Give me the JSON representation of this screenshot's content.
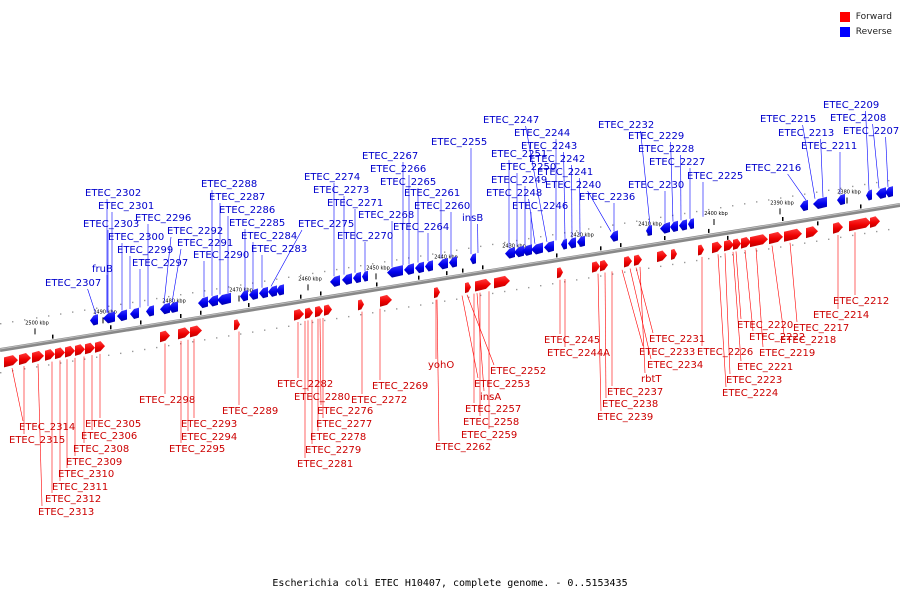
{
  "legend": {
    "forward_label": "Forward",
    "reverse_label": "Reverse",
    "forward_color": "#ff0000",
    "reverse_color": "#0000ff"
  },
  "caption": "Escherichia coli ETEC H10407, complete genome. - 0..5153435",
  "scale_ticks": [
    "2500 kbp",
    "2490 kbp",
    "2480 kbp",
    "2470 kbp",
    "2460 kbp",
    "2450 kbp",
    "2440 kbp",
    "2430 kbp",
    "2420 kbp",
    "2410 kbp",
    "2400 kbp",
    "2390 kbp",
    "2380 kbp"
  ],
  "reverse_genes": [
    "ETEC_2307",
    "fruB",
    "ETEC_2303",
    "ETEC_2302",
    "ETEC_2301",
    "ETEC_2300",
    "ETEC_2299",
    "ETEC_2297",
    "ETEC_2296",
    "ETEC_2292",
    "ETEC_2291",
    "ETEC_2290",
    "ETEC_2288",
    "ETEC_2287",
    "ETEC_2286",
    "ETEC_2285",
    "ETEC_2284",
    "ETEC_2283",
    "ETEC_2275",
    "ETEC_2274",
    "ETEC_2273",
    "ETEC_2271",
    "ETEC_2270",
    "ETEC_2268",
    "ETEC_2267",
    "ETEC_2266",
    "ETEC_2265",
    "ETEC_2264",
    "ETEC_2261",
    "ETEC_2260",
    "ETEC_2255",
    "insB",
    "ETEC_2251",
    "ETEC_2250",
    "ETEC_2249",
    "ETEC_2248",
    "ETEC_2247",
    "ETEC_2246",
    "ETEC_2244",
    "ETEC_2243",
    "ETEC_2242",
    "ETEC_2241",
    "ETEC_2240",
    "ETEC_2236",
    "ETEC_2232",
    "ETEC_2230",
    "ETEC_2229",
    "ETEC_2228",
    "ETEC_2227",
    "ETEC_2225",
    "ETEC_2216",
    "ETEC_2215",
    "ETEC_2213",
    "ETEC_2211",
    "ETEC_2209",
    "ETEC_2208",
    "ETEC_2207"
  ],
  "forward_genes": [
    "ETEC_2314",
    "ETEC_2315",
    "ETEC_2305",
    "ETEC_2306",
    "ETEC_2308",
    "ETEC_2309",
    "ETEC_2310",
    "ETEC_2311",
    "ETEC_2312",
    "ETEC_2313",
    "ETEC_2298",
    "ETEC_2293",
    "ETEC_2294",
    "ETEC_2295",
    "ETEC_2289",
    "ETEC_2282",
    "ETEC_2280",
    "ETEC_2276",
    "ETEC_2277",
    "ETEC_2278",
    "ETEC_2279",
    "ETEC_2281",
    "ETEC_2269",
    "ETEC_2272",
    "yohO",
    "ETEC_2252",
    "ETEC_2253",
    "insA",
    "ETEC_2257",
    "ETEC_2258",
    "ETEC_2259",
    "ETEC_2262",
    "ETEC_2245",
    "ETEC_2244A",
    "ETEC_2231",
    "ETEC_2233",
    "ETEC_2234",
    "rbtT",
    "ETEC_2237",
    "ETEC_2238",
    "ETEC_2239",
    "ETEC_2226",
    "ETEC_2220",
    "ETEC_2222",
    "ETEC_2221",
    "ETEC_2223",
    "ETEC_2224",
    "ETEC_2219",
    "ETEC_2218",
    "ETEC_2217",
    "ETEC_2214",
    "ETEC_2212"
  ]
}
